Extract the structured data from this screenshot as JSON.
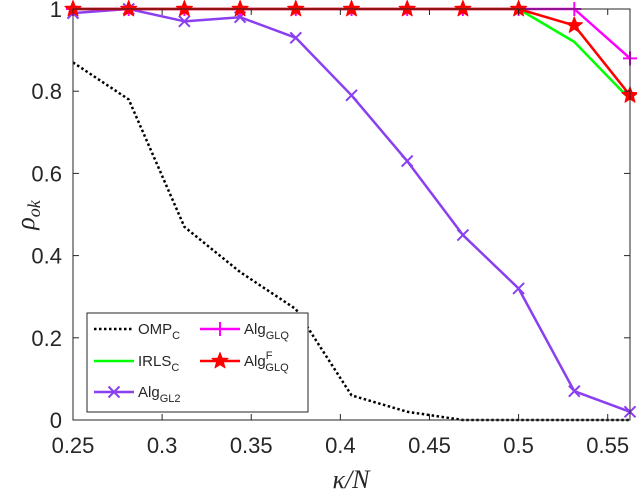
{
  "chart_data": {
    "type": "line",
    "xlabel": "κ/N",
    "ylabel_main": "ρ",
    "ylabel_sub": "ok",
    "xlim": [
      0.25,
      0.5625
    ],
    "ylim": [
      0,
      1
    ],
    "xticks": [
      0.25,
      0.3,
      0.35,
      0.4,
      0.45,
      0.5,
      0.55
    ],
    "xtick_labels": [
      "0.25",
      "0.3",
      "0.35",
      "0.4",
      "0.45",
      "0.5",
      "0.55"
    ],
    "yticks": [
      0,
      0.2,
      0.4,
      0.6,
      0.8,
      1
    ],
    "ytick_labels": [
      "0",
      "0.2",
      "0.4",
      "0.6",
      "0.8",
      "1"
    ],
    "grid": false,
    "legend_position": "bottom-left",
    "x": [
      0.25,
      0.28125,
      0.3125,
      0.34375,
      0.375,
      0.40625,
      0.4375,
      0.46875,
      0.5,
      0.53125,
      0.5625
    ],
    "series": [
      {
        "name": "OMP",
        "sub": "C",
        "sup": "",
        "color": "#000000",
        "dash": "dotted",
        "marker": "none",
        "values": [
          0.87,
          0.78,
          0.47,
          0.36,
          0.27,
          0.06,
          0.02,
          0.0,
          0.0,
          0.0,
          0.0
        ]
      },
      {
        "name": "IRLS",
        "sub": "C",
        "sup": "",
        "color": "#00ff00",
        "dash": "solid",
        "marker": "none",
        "values": [
          1,
          1,
          1,
          1,
          1,
          1,
          1,
          1,
          1,
          0.92,
          0.78
        ]
      },
      {
        "name": "Alg",
        "sub": "GL2",
        "sup": "",
        "color": "#8a3ff0",
        "dash": "solid",
        "marker": "x",
        "values": [
          0.99,
          1.0,
          0.97,
          0.98,
          0.93,
          0.79,
          0.63,
          0.45,
          0.32,
          0.07,
          0.02
        ]
      },
      {
        "name": "Alg",
        "sub": "GLQ",
        "sup": "",
        "color": "#ff00ff",
        "dash": "solid",
        "marker": "plus",
        "values": [
          1,
          1,
          1,
          1,
          1,
          1,
          1,
          1,
          1,
          1,
          0.88
        ]
      },
      {
        "name": "Alg",
        "sub": "GLQ",
        "sup": "F",
        "color": "#ff0000",
        "dash": "solid",
        "marker": "star",
        "values": [
          1,
          1,
          1,
          1,
          1,
          1,
          1,
          1,
          1,
          0.96,
          0.79
        ]
      }
    ]
  }
}
